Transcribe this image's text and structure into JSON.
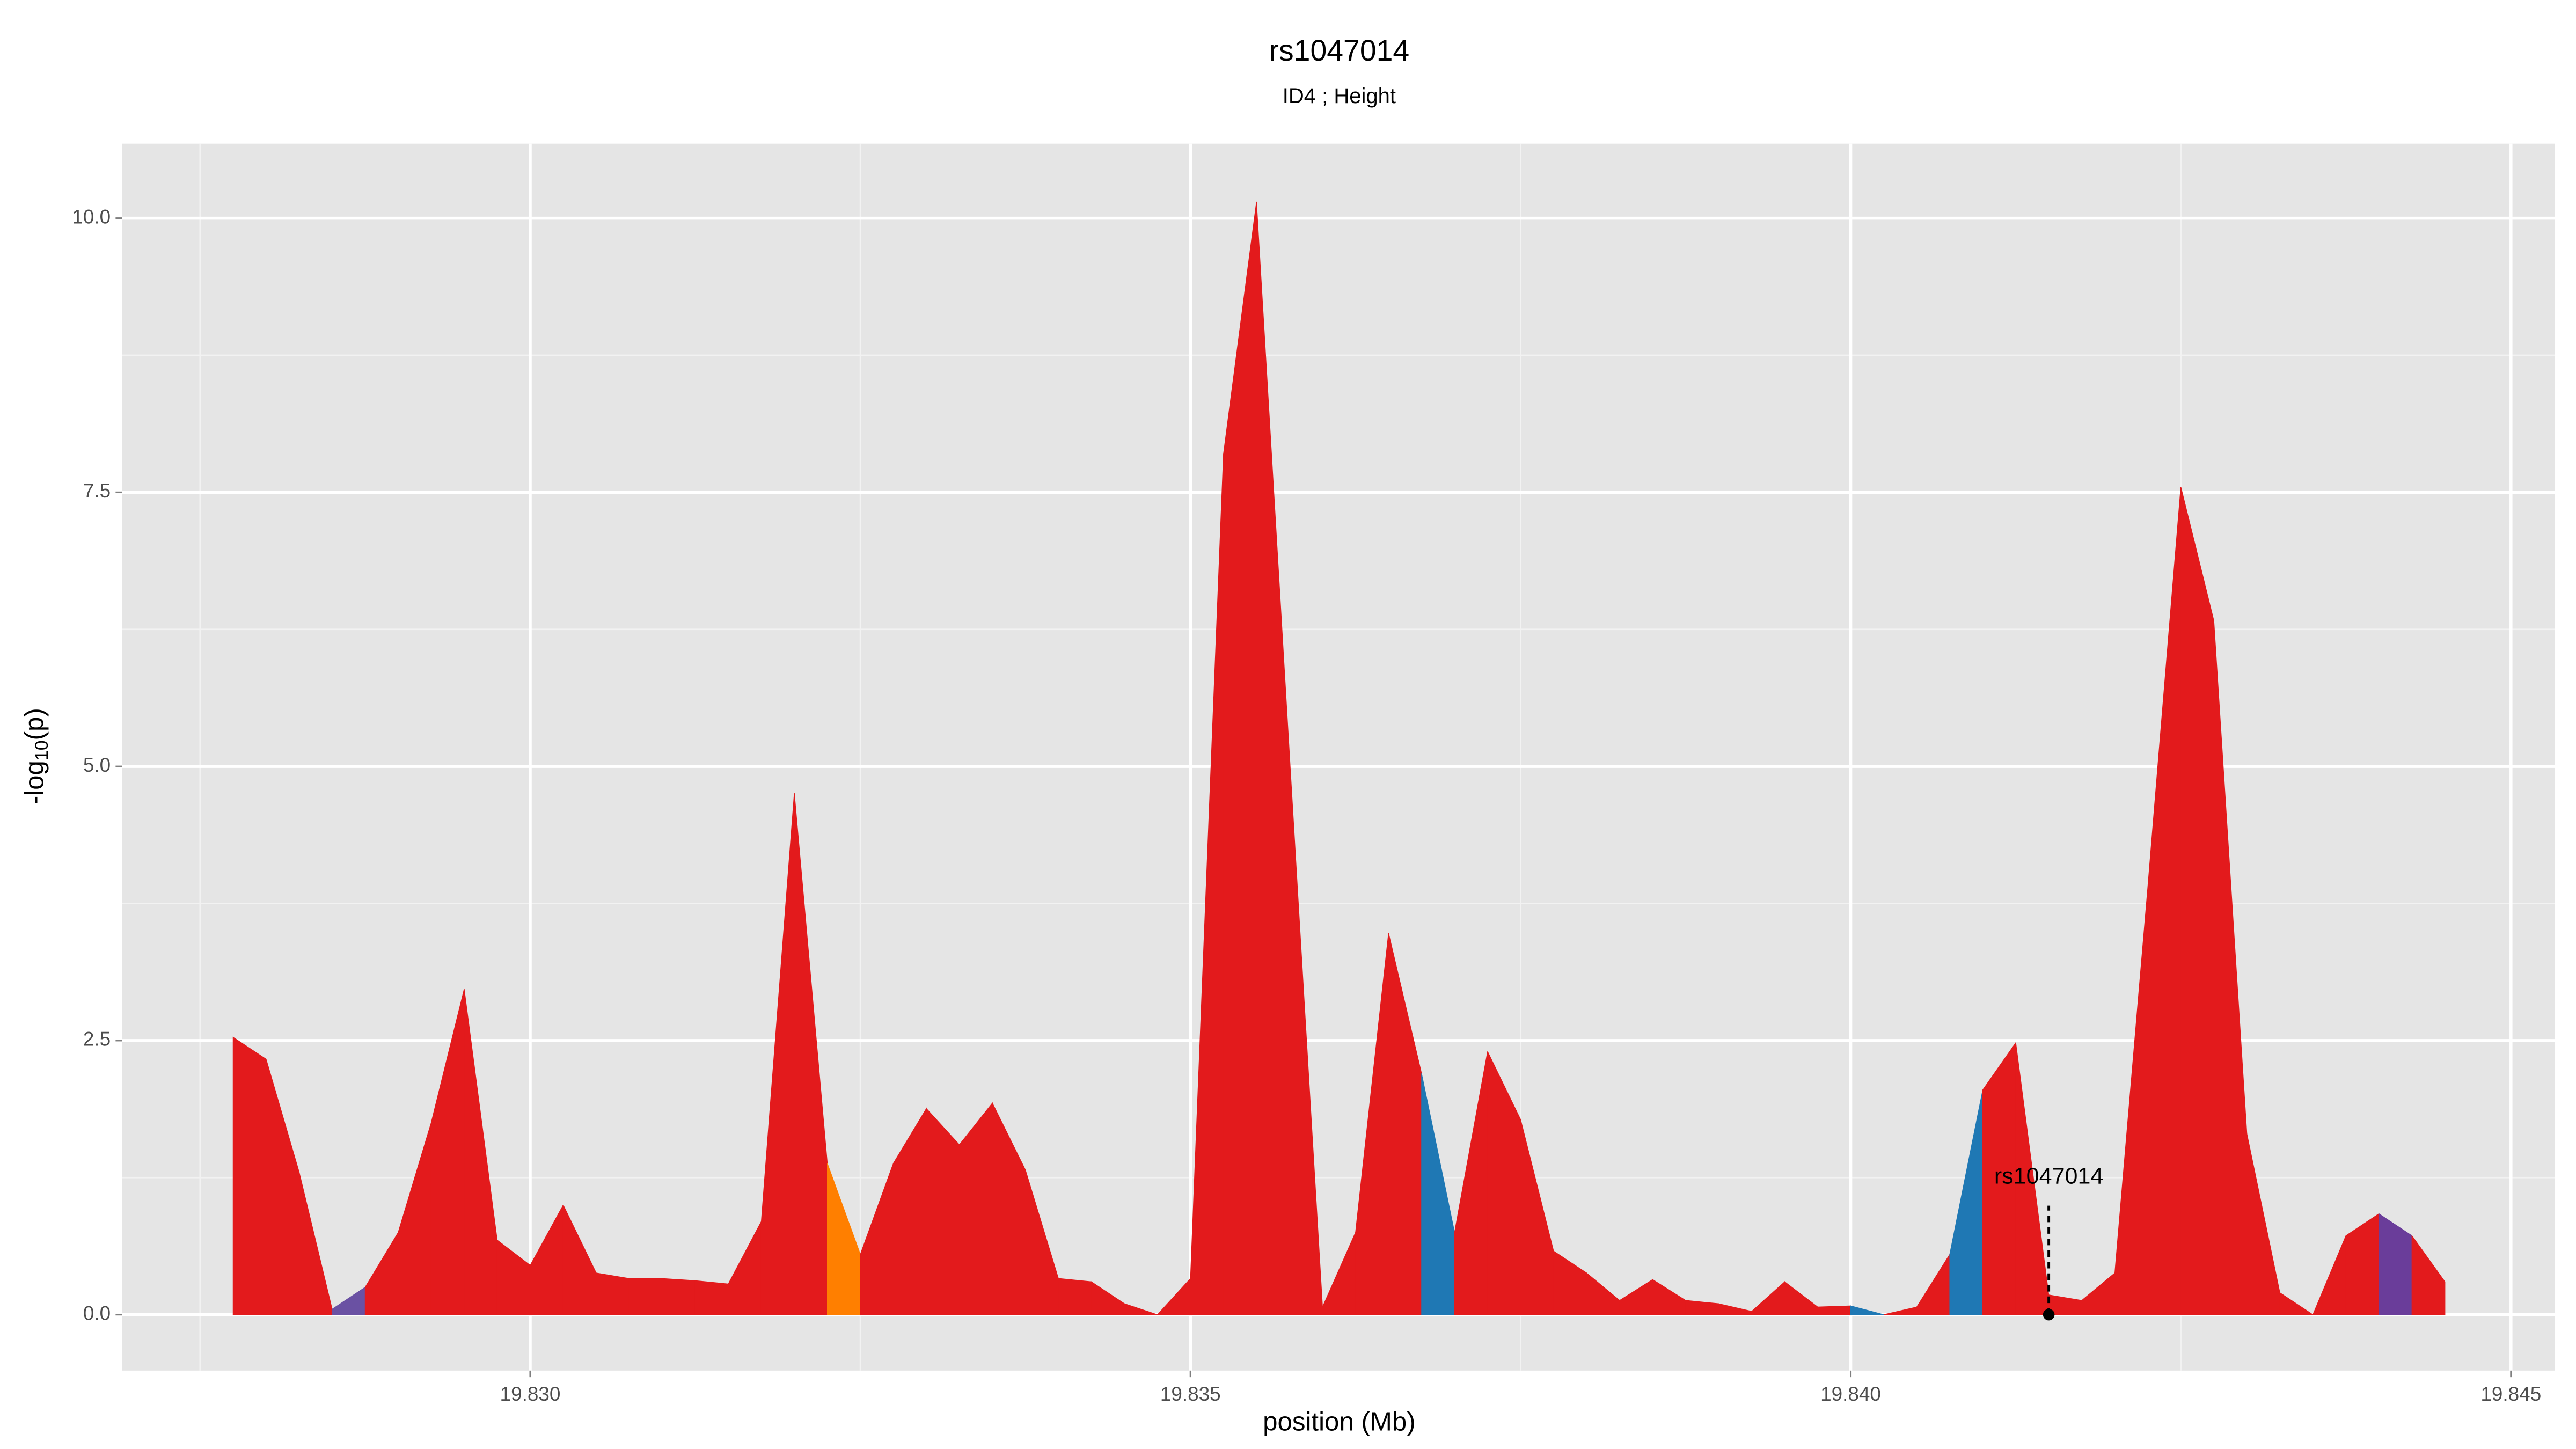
{
  "chart_data": {
    "type": "area",
    "title": "rs1047014",
    "subtitle": "ID4 ; Height",
    "xlabel": "position (Mb)",
    "ylabel": [
      "-log",
      "10",
      "(p)"
    ],
    "x": [
      19.82775,
      19.828,
      19.82825,
      19.8285,
      19.82875,
      19.829,
      19.82925,
      19.8295,
      19.82975,
      19.83,
      19.83025,
      19.8305,
      19.83075,
      19.831,
      19.83125,
      19.8315,
      19.83175,
      19.832,
      19.83225,
      19.8325,
      19.83275,
      19.833,
      19.83325,
      19.8335,
      19.83375,
      19.834,
      19.83425,
      19.8345,
      19.83475,
      19.835,
      19.83525,
      19.8355,
      19.83575,
      19.836,
      19.83625,
      19.8365,
      19.83675,
      19.837,
      19.83725,
      19.8375,
      19.83775,
      19.838,
      19.83825,
      19.8385,
      19.83875,
      19.839,
      19.83925,
      19.8395,
      19.83975,
      19.84,
      19.84025,
      19.8405,
      19.84075,
      19.841,
      19.84125,
      19.8415,
      19.84175,
      19.842,
      19.84225,
      19.8425,
      19.84275,
      19.843,
      19.84325,
      19.8435,
      19.84375,
      19.844,
      19.84425,
      19.8445
    ],
    "values": [
      2.53,
      2.33,
      1.3,
      0.05,
      0.25,
      0.75,
      1.75,
      2.97,
      0.68,
      0.45,
      1.0,
      0.38,
      0.33,
      0.33,
      0.31,
      0.28,
      0.85,
      4.76,
      1.38,
      0.55,
      1.38,
      1.88,
      1.55,
      1.93,
      1.32,
      0.33,
      0.3,
      0.1,
      0.0,
      0.33,
      7.85,
      10.15,
      5.1,
      0.07,
      0.75,
      3.48,
      2.2,
      0.75,
      2.4,
      1.78,
      0.58,
      0.38,
      0.13,
      0.32,
      0.13,
      0.1,
      0.03,
      0.3,
      0.07,
      0.08,
      0.0,
      0.07,
      0.55,
      2.05,
      2.48,
      0.18,
      0.13,
      0.38,
      3.9,
      7.55,
      6.33,
      1.65,
      0.2,
      0.0,
      0.72,
      0.92,
      0.72,
      0.3
    ],
    "segment_colors": [
      "#e31a1c",
      "#e31a1c",
      "#e31a1c",
      "#6a51a3",
      "#e31a1c",
      "#e31a1c",
      "#e31a1c",
      "#e31a1c",
      "#e31a1c",
      "#e31a1c",
      "#e31a1c",
      "#e31a1c",
      "#e31a1c",
      "#e31a1c",
      "#e31a1c",
      "#e31a1c",
      "#e31a1c",
      "#e31a1c",
      "#ff7f00",
      "#e31a1c",
      "#e31a1c",
      "#e31a1c",
      "#e31a1c",
      "#e31a1c",
      "#e31a1c",
      "#e31a1c",
      "#e31a1c",
      "#e31a1c",
      "#e31a1c",
      "#e31a1c",
      "#e31a1c",
      "#e31a1c",
      "#e31a1c",
      "#e31a1c",
      "#e31a1c",
      "#e31a1c",
      "#1f78b4",
      "#e31a1c",
      "#e31a1c",
      "#e31a1c",
      "#e31a1c",
      "#e31a1c",
      "#e31a1c",
      "#e31a1c",
      "#e31a1c",
      "#e31a1c",
      "#e31a1c",
      "#e31a1c",
      "#e31a1c",
      "#1f78b4",
      "#e31a1c",
      "#e31a1c",
      "#1f78b4",
      "#e31a1c",
      "#e31a1c",
      "#e31a1c",
      "#e31a1c",
      "#e31a1c",
      "#e31a1c",
      "#e31a1c",
      "#e31a1c",
      "#e31a1c",
      "#e31a1c",
      "#e31a1c",
      "#e31a1c",
      "#6a3d9a",
      "#e31a1c"
    ],
    "annotation": {
      "text": "rs1047014",
      "x": 19.8415
    },
    "xlim": [
      19.82691,
      19.84533
    ],
    "ylim": [
      -0.51,
      10.68
    ],
    "xticks": [
      {
        "value": 19.83,
        "label": "19.830"
      },
      {
        "value": 19.835,
        "label": "19.835"
      },
      {
        "value": 19.84,
        "label": "19.840"
      },
      {
        "value": 19.845,
        "label": "19.845"
      }
    ],
    "yticks": [
      {
        "value": 0,
        "label": "0.0"
      },
      {
        "value": 2.5,
        "label": "2.5"
      },
      {
        "value": 5,
        "label": "5.0"
      },
      {
        "value": 7.5,
        "label": "7.5"
      },
      {
        "value": 10,
        "label": "10.0"
      }
    ],
    "grid": true
  }
}
